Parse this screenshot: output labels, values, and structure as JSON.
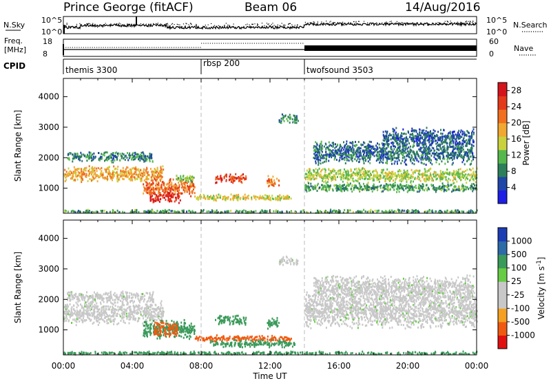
{
  "header": {
    "station": "Prince George (fitACF)",
    "beam": "Beam 06",
    "date": "14/Aug/2016"
  },
  "labels": {
    "nsky": "N.Sky",
    "nsky_top": "10^5",
    "nsky_bottom": "10^0",
    "nsearch": "N.Search",
    "nsearch_top": "10^5",
    "nsearch_bottom": "10^0",
    "freq": "Freq.",
    "freq_unit": "[MHz]",
    "freq_top": "18",
    "freq_bottom": "8",
    "nave": "Nave",
    "nave_top": "60",
    "nave_bottom": "0",
    "cpid": "CPID"
  },
  "cpid_segments": [
    {
      "label": "themis 3300",
      "start_hour": 0
    },
    {
      "label": "rbsp 200",
      "start_hour": 8
    },
    {
      "label": "twofsound 3503",
      "start_hour": 14
    }
  ],
  "colors": {
    "power": [
      "#1e1ee6",
      "#1f46a8",
      "#2c7f5a",
      "#56b84c",
      "#c9d23c",
      "#f0a830",
      "#f07020",
      "#e43a1c",
      "#d4141c"
    ],
    "velocity": [
      "#e01010",
      "#f05a10",
      "#f5a020",
      "#c8c8c8",
      "#c8c8c8",
      "#66cc44",
      "#3a9a5a",
      "#2c6aa8",
      "#1c3cb4"
    ]
  },
  "chart_data": [
    {
      "type": "heatmap",
      "name": "power",
      "ylabel": "Slant Range [km]",
      "xlabel": "",
      "xlim": [
        0,
        24
      ],
      "ylim": [
        180,
        4600
      ],
      "yticks": [
        1000,
        2000,
        3000,
        4000
      ],
      "xticks": [
        "00:00",
        "04:00",
        "08:00",
        "12:00",
        "16:00",
        "20:00",
        "00:00"
      ],
      "colorbar_label": "Power [dB]",
      "colorbar_ticks": [
        4,
        8,
        12,
        16,
        20,
        24,
        28
      ],
      "colorbar_range": [
        0,
        30
      ],
      "scatter_regions": [
        {
          "t0": 0.0,
          "t1": 5.8,
          "r_center": 1500,
          "r_half": 280,
          "value": 19
        },
        {
          "t0": 0.2,
          "t1": 5.2,
          "r_center": 2050,
          "r_half": 180,
          "value": 8
        },
        {
          "t0": 4.6,
          "t1": 7.6,
          "r_center": 1050,
          "r_half": 320,
          "value": 22
        },
        {
          "t0": 5.0,
          "t1": 6.8,
          "r_center": 720,
          "r_half": 180,
          "value": 27
        },
        {
          "t0": 7.6,
          "t1": 13.2,
          "r_center": 720,
          "r_half": 120,
          "value": 16
        },
        {
          "t0": 6.5,
          "t1": 7.6,
          "r_center": 1350,
          "r_half": 150,
          "value": 13
        },
        {
          "t0": 8.8,
          "t1": 10.6,
          "r_center": 1350,
          "r_half": 170,
          "value": 25
        },
        {
          "t0": 11.8,
          "t1": 12.5,
          "r_center": 1250,
          "r_half": 200,
          "value": 21
        },
        {
          "t0": 12.5,
          "t1": 13.6,
          "r_center": 3300,
          "r_half": 170,
          "value": 8
        },
        {
          "t0": 14.0,
          "t1": 24.0,
          "r_center": 1450,
          "r_half": 250,
          "value": 14
        },
        {
          "t0": 14.0,
          "t1": 24.0,
          "r_center": 1050,
          "r_half": 160,
          "value": 10
        },
        {
          "t0": 14.5,
          "t1": 23.8,
          "r_center": 2200,
          "r_half": 420,
          "value": 7
        },
        {
          "t0": 18.5,
          "t1": 23.8,
          "r_center": 2700,
          "r_half": 320,
          "value": 6
        },
        {
          "t0": 0.0,
          "t1": 24.0,
          "r_center": 260,
          "r_half": 70,
          "value": 10
        }
      ]
    },
    {
      "type": "heatmap",
      "name": "velocity",
      "ylabel": "Slant Range [km]",
      "xlabel": "Time UT",
      "xlim": [
        0,
        24
      ],
      "ylim": [
        180,
        4600
      ],
      "yticks": [
        1000,
        2000,
        3000,
        4000
      ],
      "xticks": [
        "00:00",
        "04:00",
        "08:00",
        "12:00",
        "16:00",
        "20:00",
        "00:00"
      ],
      "colorbar_label": "Velocity [m s^-1]",
      "colorbar_ticks": [
        1000,
        500,
        100,
        25,
        -25,
        -100,
        -500,
        -1000
      ],
      "scatter_regions": [
        {
          "t0": 0.0,
          "t1": 5.8,
          "r_center": 1600,
          "r_half": 420,
          "value": 0
        },
        {
          "t0": 0.2,
          "t1": 5.2,
          "r_center": 2100,
          "r_half": 200,
          "value": 0
        },
        {
          "t0": 4.6,
          "t1": 7.6,
          "r_center": 1050,
          "r_half": 320,
          "value": 150
        },
        {
          "t0": 5.2,
          "t1": 6.6,
          "r_center": 1050,
          "r_half": 260,
          "value": -300
        },
        {
          "t0": 7.6,
          "t1": 13.2,
          "r_center": 750,
          "r_half": 110,
          "value": -400
        },
        {
          "t0": 8.5,
          "t1": 13.4,
          "r_center": 580,
          "r_half": 130,
          "value": 200
        },
        {
          "t0": 8.8,
          "t1": 10.6,
          "r_center": 1350,
          "r_half": 170,
          "value": 300
        },
        {
          "t0": 11.8,
          "t1": 12.5,
          "r_center": 1250,
          "r_half": 200,
          "value": 200
        },
        {
          "t0": 12.5,
          "t1": 13.6,
          "r_center": 3300,
          "r_half": 170,
          "value": 0
        },
        {
          "t0": 14.0,
          "t1": 24.0,
          "r_center": 1700,
          "r_half": 650,
          "value": 0
        },
        {
          "t0": 14.5,
          "t1": 23.8,
          "r_center": 2400,
          "r_half": 420,
          "value": 0
        },
        {
          "t0": 0.0,
          "t1": 24.0,
          "r_center": 260,
          "r_half": 70,
          "value": 150
        }
      ]
    }
  ]
}
